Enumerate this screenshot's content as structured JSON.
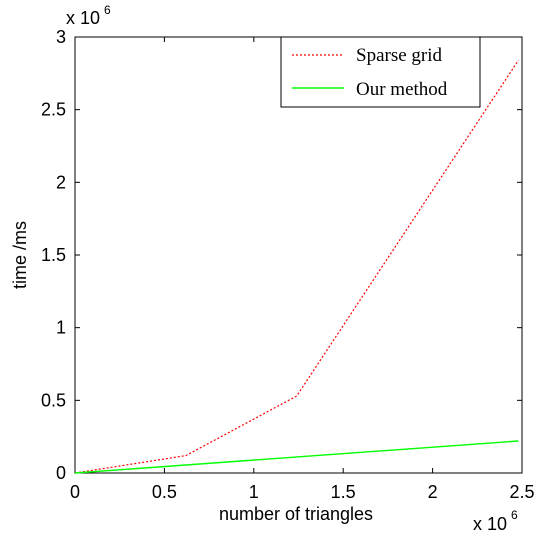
{
  "chart_data": {
    "type": "line",
    "title": "",
    "xlabel": "number of triangles",
    "ylabel": "time /ms",
    "x_multiplier_label": "x 10",
    "x_multiplier_exp": "6",
    "y_multiplier_label": "x 10",
    "y_multiplier_exp": "6",
    "xlim": [
      0,
      2.5
    ],
    "ylim": [
      0,
      3
    ],
    "x_ticks": [
      "0",
      "0.5",
      "1",
      "1.5",
      "2",
      "2.5"
    ],
    "y_ticks": [
      "0",
      "0.5",
      "1",
      "1.5",
      "2",
      "2.5",
      "3"
    ],
    "legend_position": "top-right",
    "grid": false,
    "series": [
      {
        "name": "Sparse grid",
        "color": "#ff0000",
        "style": "dotted",
        "x": [
          0,
          0.62,
          1.24,
          2.48
        ],
        "y": [
          0,
          0.12,
          0.53,
          2.84
        ]
      },
      {
        "name": "Our method",
        "color": "#00ff00",
        "style": "solid",
        "x": [
          0,
          2.48
        ],
        "y": [
          0,
          0.22
        ]
      }
    ]
  }
}
